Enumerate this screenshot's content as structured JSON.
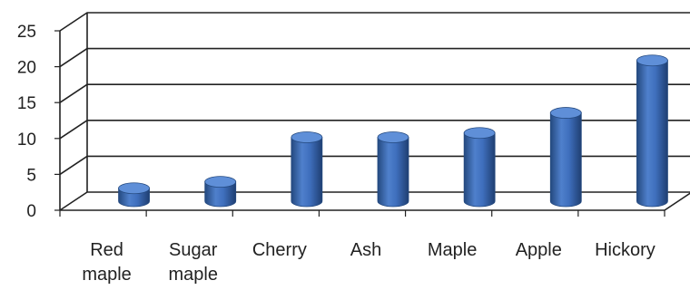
{
  "chart_data": {
    "type": "bar",
    "style": "3d-cylinder",
    "title": "",
    "xlabel": "",
    "ylabel": "",
    "categories": [
      [
        "Red",
        "maple"
      ],
      [
        "Sugar",
        "maple"
      ],
      [
        "Cherry"
      ],
      [
        "Ash"
      ],
      [
        "Maple"
      ],
      [
        "Apple"
      ],
      [
        "Hickory"
      ]
    ],
    "values": [
      1.8,
      2.7,
      8.9,
      8.9,
      9.5,
      12.3,
      19.6
    ],
    "yticks": [
      "0",
      "5",
      "10",
      "15",
      "20",
      "25"
    ],
    "ylim": [
      0,
      25
    ],
    "grid": true,
    "legend": "none",
    "colors": {
      "bar": "#3f6fbd",
      "bar_dark": "#24497f",
      "bar_top": "#5f8fd8",
      "grid": "#222222"
    }
  }
}
